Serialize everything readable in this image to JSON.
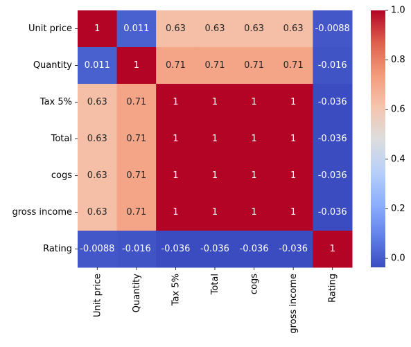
{
  "chart_data": {
    "type": "heatmap",
    "title": "",
    "xlabel": "",
    "ylabel": "",
    "rows": [
      "Unit price",
      "Quantity",
      "Tax 5%",
      "Total",
      "cogs",
      "gross income",
      "Rating"
    ],
    "columns": [
      "Unit price",
      "Quantity",
      "Tax 5%",
      "Total",
      "cogs",
      "gross income",
      "Rating"
    ],
    "values": [
      [
        1,
        0.011,
        0.63,
        0.63,
        0.63,
        0.63,
        -0.0088
      ],
      [
        0.011,
        1,
        0.71,
        0.71,
        0.71,
        0.71,
        -0.016
      ],
      [
        0.63,
        0.71,
        1,
        1,
        1,
        1,
        -0.036
      ],
      [
        0.63,
        0.71,
        1,
        1,
        1,
        1,
        -0.036
      ],
      [
        0.63,
        0.71,
        1,
        1,
        1,
        1,
        -0.036
      ],
      [
        0.63,
        0.71,
        1,
        1,
        1,
        1,
        -0.036
      ],
      [
        -0.0088,
        -0.016,
        -0.036,
        -0.036,
        -0.036,
        -0.036,
        1
      ]
    ],
    "cell_labels": [
      [
        "1",
        "0.011",
        "0.63",
        "0.63",
        "0.63",
        "0.63",
        "-0.0088"
      ],
      [
        "0.011",
        "1",
        "0.71",
        "0.71",
        "0.71",
        "0.71",
        "-0.016"
      ],
      [
        "0.63",
        "0.71",
        "1",
        "1",
        "1",
        "1",
        "-0.036"
      ],
      [
        "0.63",
        "0.71",
        "1",
        "1",
        "1",
        "1",
        "-0.036"
      ],
      [
        "0.63",
        "0.71",
        "1",
        "1",
        "1",
        "1",
        "-0.036"
      ],
      [
        "0.63",
        "0.71",
        "1",
        "1",
        "1",
        "1",
        "-0.036"
      ],
      [
        "-0.0088",
        "-0.016",
        "-0.036",
        "-0.036",
        "-0.036",
        "-0.036",
        "1"
      ]
    ],
    "colormap": "coolwarm",
    "colorbar": {
      "min": -0.036,
      "max": 1.0,
      "ticks": [
        0.0,
        0.2,
        0.4,
        0.6,
        0.8,
        1.0
      ],
      "tick_labels": [
        "0.0",
        "0.2",
        "0.4",
        "0.6",
        "0.8",
        "1.0"
      ]
    },
    "grid": false
  }
}
